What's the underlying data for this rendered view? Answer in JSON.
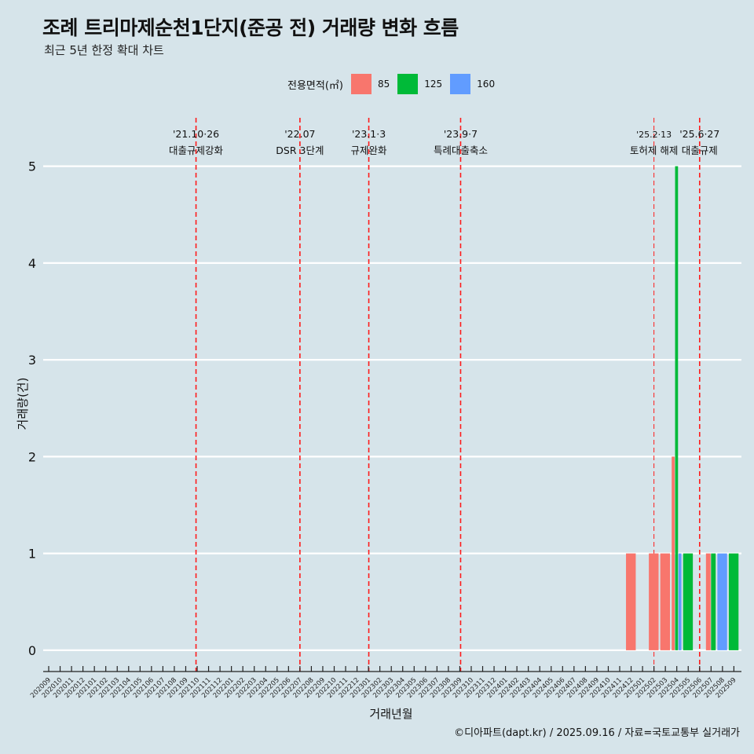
{
  "title": "조례 트리마제순천1단지(준공 전) 거래량 변화 흐름",
  "subtitle": "최근 5년 한정 확대 차트",
  "caption": "©디아파트(dapt.kr) / 2025.09.16 / 자료=국토교통부 실거래가",
  "legend": {
    "title": "전용면적(㎡)",
    "items": [
      {
        "label": "85",
        "color": "#f8766d"
      },
      {
        "label": "125",
        "color": "#00ba38"
      },
      {
        "label": "160",
        "color": "#619cff"
      }
    ]
  },
  "chart_data": {
    "type": "bar",
    "title": "조례 트리마제순천1단지(준공 전) 거래량 변화 흐름",
    "subtitle": "최근 5년 한정 확대 차트",
    "xlabel": "거래년월",
    "ylabel": "거래량(건)",
    "ylim": [
      -0.22,
      5.5
    ],
    "yticks": [
      0,
      1,
      2,
      3,
      4,
      5
    ],
    "categories": [
      "202009",
      "202010",
      "202011",
      "202012",
      "202101",
      "202102",
      "202103",
      "202104",
      "202105",
      "202106",
      "202107",
      "202108",
      "202109",
      "202110",
      "202111",
      "202112",
      "202201",
      "202202",
      "202203",
      "202204",
      "202205",
      "202206",
      "202207",
      "202208",
      "202209",
      "202210",
      "202211",
      "202212",
      "202301",
      "202302",
      "202303",
      "202304",
      "202305",
      "202306",
      "202307",
      "202308",
      "202309",
      "202310",
      "202311",
      "202312",
      "202401",
      "202402",
      "202403",
      "202404",
      "202405",
      "202406",
      "202407",
      "202408",
      "202409",
      "202410",
      "202411",
      "202412",
      "202501",
      "202502",
      "202503",
      "202504",
      "202505",
      "202506",
      "202507",
      "202508",
      "202509"
    ],
    "series": [
      {
        "name": "85",
        "color": "#f8766d",
        "points": [
          [
            "202412",
            1
          ],
          [
            "202502",
            1
          ],
          [
            "202503",
            1
          ],
          [
            "202504",
            2
          ],
          [
            "202507",
            1
          ]
        ]
      },
      {
        "name": "125",
        "color": "#00ba38",
        "points": [
          [
            "202504",
            5
          ],
          [
            "202505",
            1
          ],
          [
            "202507",
            1
          ],
          [
            "202509",
            1
          ]
        ]
      },
      {
        "name": "160",
        "color": "#619cff",
        "points": [
          [
            "202504",
            1
          ],
          [
            "202508",
            1
          ]
        ]
      }
    ],
    "events": [
      {
        "date": "202110",
        "offset": -0.1,
        "label": "'21.10·26",
        "desc": "대출규제강화",
        "style": "dashed"
      },
      {
        "date": "202207",
        "offset": 0.0,
        "label": "'22.07",
        "desc": "DSR 3단계",
        "style": "dashed"
      },
      {
        "date": "202301",
        "offset": 0.03,
        "label": "'23.1·3",
        "desc": "규제완화",
        "style": "dashed"
      },
      {
        "date": "202309",
        "offset": 0.07,
        "label": "'23.9·7",
        "desc": "특례대출축소",
        "style": "dashed"
      },
      {
        "date": "202502",
        "offset": 0.0,
        "label": "'25.2·13",
        "desc": "토허제 해제",
        "style": "thin"
      },
      {
        "date": "202506",
        "offset": 0.0,
        "label": "'25.6·27",
        "desc": "대출규제",
        "style": "dashed"
      }
    ],
    "grid": true,
    "legend_position": "top"
  }
}
